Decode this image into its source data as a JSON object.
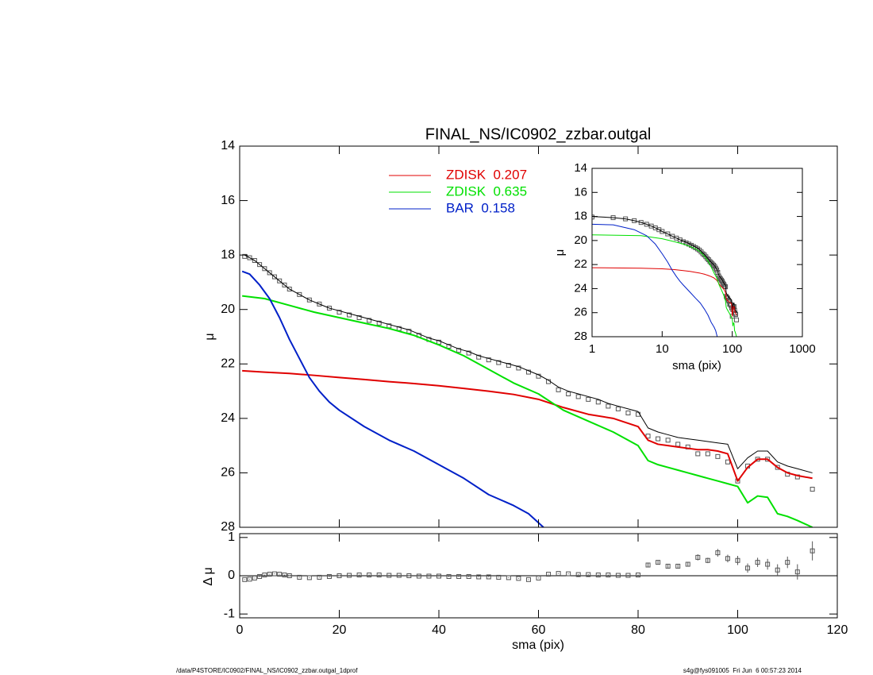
{
  "chart_data": [
    {
      "type": "line",
      "title": "FINAL_NS/IC0902_zzbar.outgal",
      "ylabel": "μ",
      "xlim": [
        0,
        120
      ],
      "xticks": [
        0,
        20,
        40,
        60,
        80,
        100,
        120
      ],
      "ylim": [
        28,
        14
      ],
      "yticks": [
        14,
        16,
        18,
        20,
        22,
        24,
        26,
        28
      ],
      "legend": "top",
      "series": [
        {
          "color": "#555555",
          "marker": "square",
          "x": [
            1,
            2,
            3,
            4,
            5,
            6,
            7,
            8,
            9,
            10,
            12,
            14,
            16,
            18,
            20,
            22,
            24,
            26,
            28,
            30,
            32,
            34,
            36,
            38,
            40,
            42,
            44,
            46,
            48,
            50,
            52,
            54,
            56,
            58,
            60,
            62,
            64,
            66,
            68,
            70,
            72,
            74,
            76,
            78,
            80,
            82,
            84,
            86,
            88,
            90,
            92,
            94,
            96,
            98,
            100,
            102,
            104,
            106,
            108,
            110,
            112,
            115
          ],
          "values": [
            18.05,
            18.1,
            18.2,
            18.35,
            18.5,
            18.65,
            18.8,
            18.95,
            19.1,
            19.25,
            19.45,
            19.65,
            19.8,
            19.95,
            20.1,
            20.2,
            20.3,
            20.4,
            20.5,
            20.6,
            20.7,
            20.8,
            20.95,
            21.1,
            21.2,
            21.35,
            21.5,
            21.6,
            21.75,
            21.85,
            21.95,
            22.05,
            22.15,
            22.3,
            22.45,
            22.65,
            22.95,
            23.1,
            23.2,
            23.3,
            23.4,
            23.55,
            23.65,
            23.8,
            23.85,
            24.65,
            24.75,
            24.8,
            24.95,
            25.05,
            25.3,
            25.3,
            25.4,
            25.6,
            26.3,
            25.75,
            25.5,
            25.5,
            25.8,
            26.05,
            26.15,
            26.6
          ]
        },
        {
          "color": "#000000",
          "x": [
            1,
            2,
            3,
            4,
            5,
            6,
            7,
            8,
            9,
            10,
            12,
            14,
            16,
            18,
            20,
            22,
            24,
            26,
            28,
            30,
            32,
            34,
            36,
            38,
            40,
            42,
            44,
            46,
            48,
            50,
            52,
            54,
            56,
            58,
            60,
            62,
            64,
            66,
            68,
            70,
            72,
            74,
            76,
            78,
            80,
            82,
            84,
            86,
            88,
            90,
            92,
            94,
            96,
            98,
            100,
            102,
            104,
            106,
            108,
            110,
            112,
            115
          ],
          "values": [
            18.0,
            18.1,
            18.2,
            18.35,
            18.5,
            18.65,
            18.8,
            18.95,
            19.1,
            19.25,
            19.45,
            19.65,
            19.8,
            19.95,
            20.05,
            20.15,
            20.25,
            20.35,
            20.45,
            20.55,
            20.65,
            20.75,
            20.9,
            21.05,
            21.15,
            21.3,
            21.45,
            21.55,
            21.7,
            21.8,
            21.9,
            22.0,
            22.1,
            22.25,
            22.4,
            22.6,
            22.85,
            23.0,
            23.1,
            23.2,
            23.3,
            23.45,
            23.55,
            23.65,
            23.75,
            24.35,
            24.5,
            24.6,
            24.7,
            24.75,
            24.8,
            24.85,
            24.9,
            24.95,
            25.85,
            25.45,
            25.2,
            25.2,
            25.6,
            25.75,
            25.85,
            26.0
          ]
        },
        {
          "name": "ZDISK  0.207",
          "color": "#e00000",
          "x": [
            0.5,
            5,
            10,
            15,
            20,
            25,
            30,
            35,
            40,
            45,
            50,
            55,
            60,
            65,
            70,
            75,
            80,
            82,
            84,
            86,
            88,
            90,
            92,
            94,
            96,
            98,
            100,
            102,
            104,
            106,
            108,
            110,
            112,
            115
          ],
          "values": [
            22.25,
            22.3,
            22.35,
            22.42,
            22.5,
            22.57,
            22.65,
            22.72,
            22.8,
            22.9,
            23.0,
            23.12,
            23.3,
            23.6,
            23.85,
            24.0,
            24.3,
            24.8,
            24.95,
            25.0,
            25.05,
            25.1,
            25.15,
            25.15,
            25.2,
            25.3,
            26.3,
            25.8,
            25.5,
            25.5,
            25.8,
            26.0,
            26.1,
            26.2
          ]
        },
        {
          "name": "ZDISK  0.635",
          "color": "#00e000",
          "x": [
            0.5,
            5,
            10,
            15,
            20,
            25,
            30,
            35,
            40,
            45,
            50,
            55,
            60,
            65,
            70,
            75,
            80,
            82,
            84,
            86,
            88,
            90,
            92,
            94,
            96,
            98,
            100,
            102,
            104,
            106,
            108,
            110,
            112,
            115
          ],
          "values": [
            19.5,
            19.6,
            19.85,
            20.1,
            20.3,
            20.5,
            20.7,
            20.95,
            21.3,
            21.7,
            22.2,
            22.7,
            23.1,
            23.7,
            24.1,
            24.5,
            25.0,
            25.55,
            25.7,
            25.8,
            25.9,
            26.0,
            26.1,
            26.2,
            26.3,
            26.4,
            26.5,
            27.1,
            26.85,
            26.9,
            27.5,
            27.6,
            27.75,
            28.0
          ]
        },
        {
          "name": "BAR  0.158",
          "color": "#0020c8",
          "x": [
            0.5,
            2,
            4,
            6,
            8,
            10,
            12,
            14,
            16,
            18,
            20,
            25,
            30,
            35,
            40,
            45,
            50,
            55,
            58,
            61
          ],
          "values": [
            18.6,
            18.7,
            19.1,
            19.6,
            20.3,
            21.1,
            21.8,
            22.5,
            23.0,
            23.4,
            23.7,
            24.3,
            24.8,
            25.2,
            25.7,
            26.2,
            26.8,
            27.2,
            27.5,
            28.0
          ]
        }
      ]
    },
    {
      "type": "line",
      "xlabel": "sma (pix)",
      "ylabel": "μ",
      "log_x": true,
      "xlim": [
        1,
        1000
      ],
      "xticks": [
        1,
        10,
        100,
        1000
      ],
      "ylim": [
        28,
        14
      ],
      "yticks": [
        14,
        16,
        18,
        20,
        22,
        24,
        26,
        28
      ]
    },
    {
      "type": "errorbar",
      "xlabel": "sma (pix)",
      "ylabel": "Δ μ",
      "xlim": [
        0,
        120
      ],
      "xticks": [
        0,
        20,
        40,
        60,
        80,
        100,
        120
      ],
      "ylim": [
        -1.1,
        1.1
      ],
      "yticks": [
        -1,
        0,
        1
      ],
      "series": [
        {
          "color": "#555555",
          "marker": "square",
          "x": [
            1,
            2,
            3,
            4,
            5,
            6,
            7,
            8,
            9,
            10,
            12,
            14,
            16,
            18,
            20,
            22,
            24,
            26,
            28,
            30,
            32,
            34,
            36,
            38,
            40,
            42,
            44,
            46,
            48,
            50,
            52,
            54,
            56,
            58,
            60,
            62,
            64,
            66,
            68,
            70,
            72,
            74,
            76,
            78,
            80,
            82,
            84,
            86,
            88,
            90,
            92,
            94,
            96,
            98,
            100,
            102,
            104,
            106,
            108,
            110,
            112,
            115
          ],
          "values": [
            -0.1,
            -0.09,
            -0.06,
            -0.02,
            0.02,
            0.04,
            0.05,
            0.04,
            0.02,
            0,
            -0.04,
            -0.05,
            -0.04,
            -0.02,
            0,
            0.01,
            0.02,
            0.02,
            0.02,
            0.01,
            0.01,
            0,
            -0.01,
            -0.01,
            -0.01,
            -0.02,
            -0.02,
            -0.02,
            -0.03,
            -0.03,
            -0.04,
            -0.05,
            -0.07,
            -0.1,
            -0.06,
            0.04,
            0.06,
            0.05,
            0.03,
            0.03,
            0.02,
            0.02,
            0.01,
            0.01,
            0.02,
            0.28,
            0.35,
            0.25,
            0.25,
            0.3,
            0.48,
            0.4,
            0.6,
            0.45,
            0.4,
            0.2,
            0.35,
            0.3,
            0.15,
            0.35,
            0.1,
            0.65
          ],
          "errors": [
            0.01,
            0.01,
            0.01,
            0.01,
            0.01,
            0.01,
            0.01,
            0.01,
            0.01,
            0.01,
            0.01,
            0.01,
            0.01,
            0.01,
            0.01,
            0.01,
            0.01,
            0.01,
            0.01,
            0.01,
            0.01,
            0.01,
            0.01,
            0.01,
            0.01,
            0.01,
            0.01,
            0.01,
            0.01,
            0.01,
            0.01,
            0.01,
            0.01,
            0.01,
            0.01,
            0.01,
            0.01,
            0.01,
            0.01,
            0.01,
            0.01,
            0.01,
            0.01,
            0.01,
            0.01,
            0.05,
            0.05,
            0.05,
            0.05,
            0.06,
            0.08,
            0.07,
            0.1,
            0.1,
            0.12,
            0.12,
            0.12,
            0.14,
            0.15,
            0.15,
            0.2,
            0.25
          ]
        }
      ]
    }
  ],
  "footer": {
    "left": "/data/P4STORE/IC0902/FINAL_NS/IC0902_zzbar.outgal_1dprof",
    "right": "s4g@fys091005  Fri Jun  6 00:57:23 2014"
  }
}
